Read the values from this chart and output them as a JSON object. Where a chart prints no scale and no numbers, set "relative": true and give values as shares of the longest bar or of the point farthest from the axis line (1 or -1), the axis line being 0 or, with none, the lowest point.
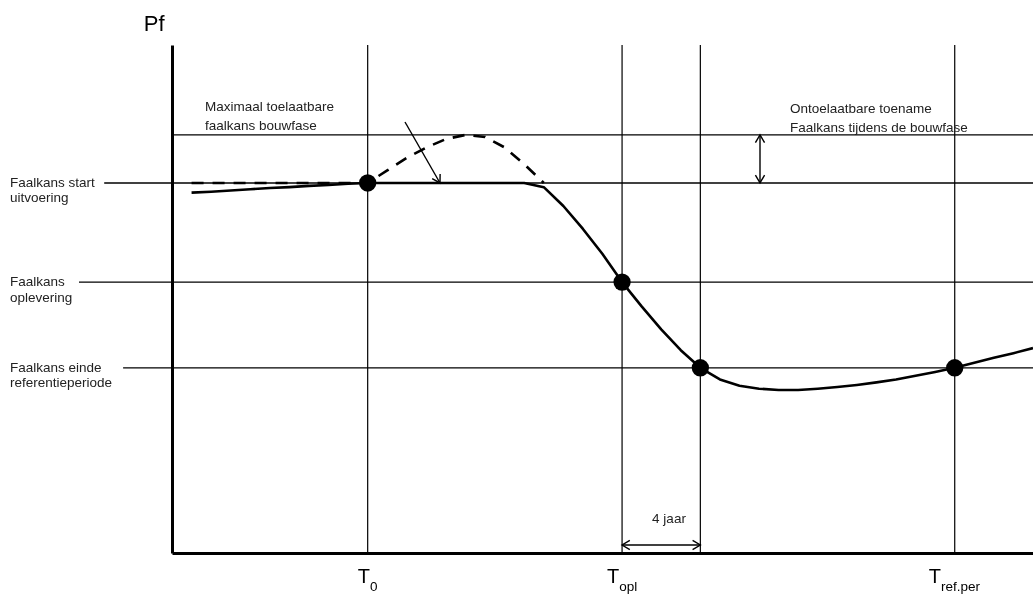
{
  "chart_data": {
    "type": "line",
    "relative": true,
    "ylabel": "Pf",
    "categories": [
      null,
      null,
      null,
      null,
      null,
      null,
      null,
      null,
      null,
      null,
      "T$_{0}$",
      null,
      null,
      null,
      null,
      null,
      null,
      null,
      null,
      null,
      null,
      null,
      null,
      "T$_{opl}$",
      null,
      null,
      null,
      null,
      null,
      null,
      null,
      null,
      null,
      null,
      null,
      null,
      null,
      null,
      null,
      null,
      "T$_{ref.per}$",
      null,
      null,
      null,
      null
    ],
    "grid": "x",
    "series": [
      {
        "type": "line",
        "color": "#000000",
        "line_style": "solid",
        "marker": "none",
        "values": [
          null,
          0.862,
          0.864,
          0.867,
          0.87,
          0.873,
          0.875,
          0.878,
          0.88,
          0.883,
          0.885,
          0.885,
          0.885,
          0.885,
          0.885,
          0.885,
          0.885,
          0.885,
          0.885,
          0.875,
          0.83,
          0.775,
          0.715,
          0.648,
          0.59,
          0.535,
          0.485,
          0.443,
          0.415,
          0.4,
          0.393,
          0.39,
          0.39,
          0.393,
          0.397,
          0.402,
          0.408,
          0.415,
          0.424,
          0.433,
          0.443,
          0.455,
          0.467,
          0.478,
          0.49
        ]
      },
      {
        "type": "line",
        "color": "#000000",
        "line_style": "dashed",
        "marker": "none",
        "values": [
          null,
          0.885,
          0.885,
          0.885,
          0.885,
          0.885,
          0.885,
          0.885,
          0.885,
          0.885,
          0.885,
          0.915,
          0.945,
          0.97,
          0.99,
          1.0,
          0.995,
          0.97,
          0.93,
          0.885,
          null,
          null,
          null,
          null,
          null,
          null,
          null,
          null,
          null,
          null,
          null,
          null,
          null,
          null,
          null,
          null,
          null,
          null,
          null,
          null,
          null,
          null,
          null,
          null,
          null
        ]
      },
      {
        "type": "scatter",
        "color": "#000000",
        "marker": "circle",
        "values": [
          null,
          null,
          null,
          null,
          null,
          null,
          null,
          null,
          null,
          null,
          0.885,
          null,
          null,
          null,
          null,
          null,
          null,
          null,
          null,
          null,
          null,
          null,
          null,
          0.648,
          null,
          null,
          null,
          0.443,
          null,
          null,
          null,
          null,
          null,
          null,
          null,
          null,
          null,
          null,
          null,
          null,
          0.443,
          null,
          null,
          null,
          null
        ]
      }
    ],
    "ref_lines": [
      {
        "axis": "y",
        "value": 0.885,
        "label": "Faalkans start uitvoering",
        "color": "#000000"
      },
      {
        "axis": "y",
        "value": 0.648,
        "label": "Faalkans oplevering",
        "color": "#000000"
      },
      {
        "axis": "y",
        "value": 0.443,
        "label": "Faalkans einde referentieperiode",
        "color": "#000000"
      },
      {
        "axis": "y",
        "value": 1.0,
        "label": null,
        "color": "#000000"
      }
    ],
    "annotations": [
      "Maximaal toelaatbare faalkans bouwfase",
      "Ontoelaatbare toename Faalkans tijdens de bouwfase",
      "4 jaar"
    ]
  }
}
